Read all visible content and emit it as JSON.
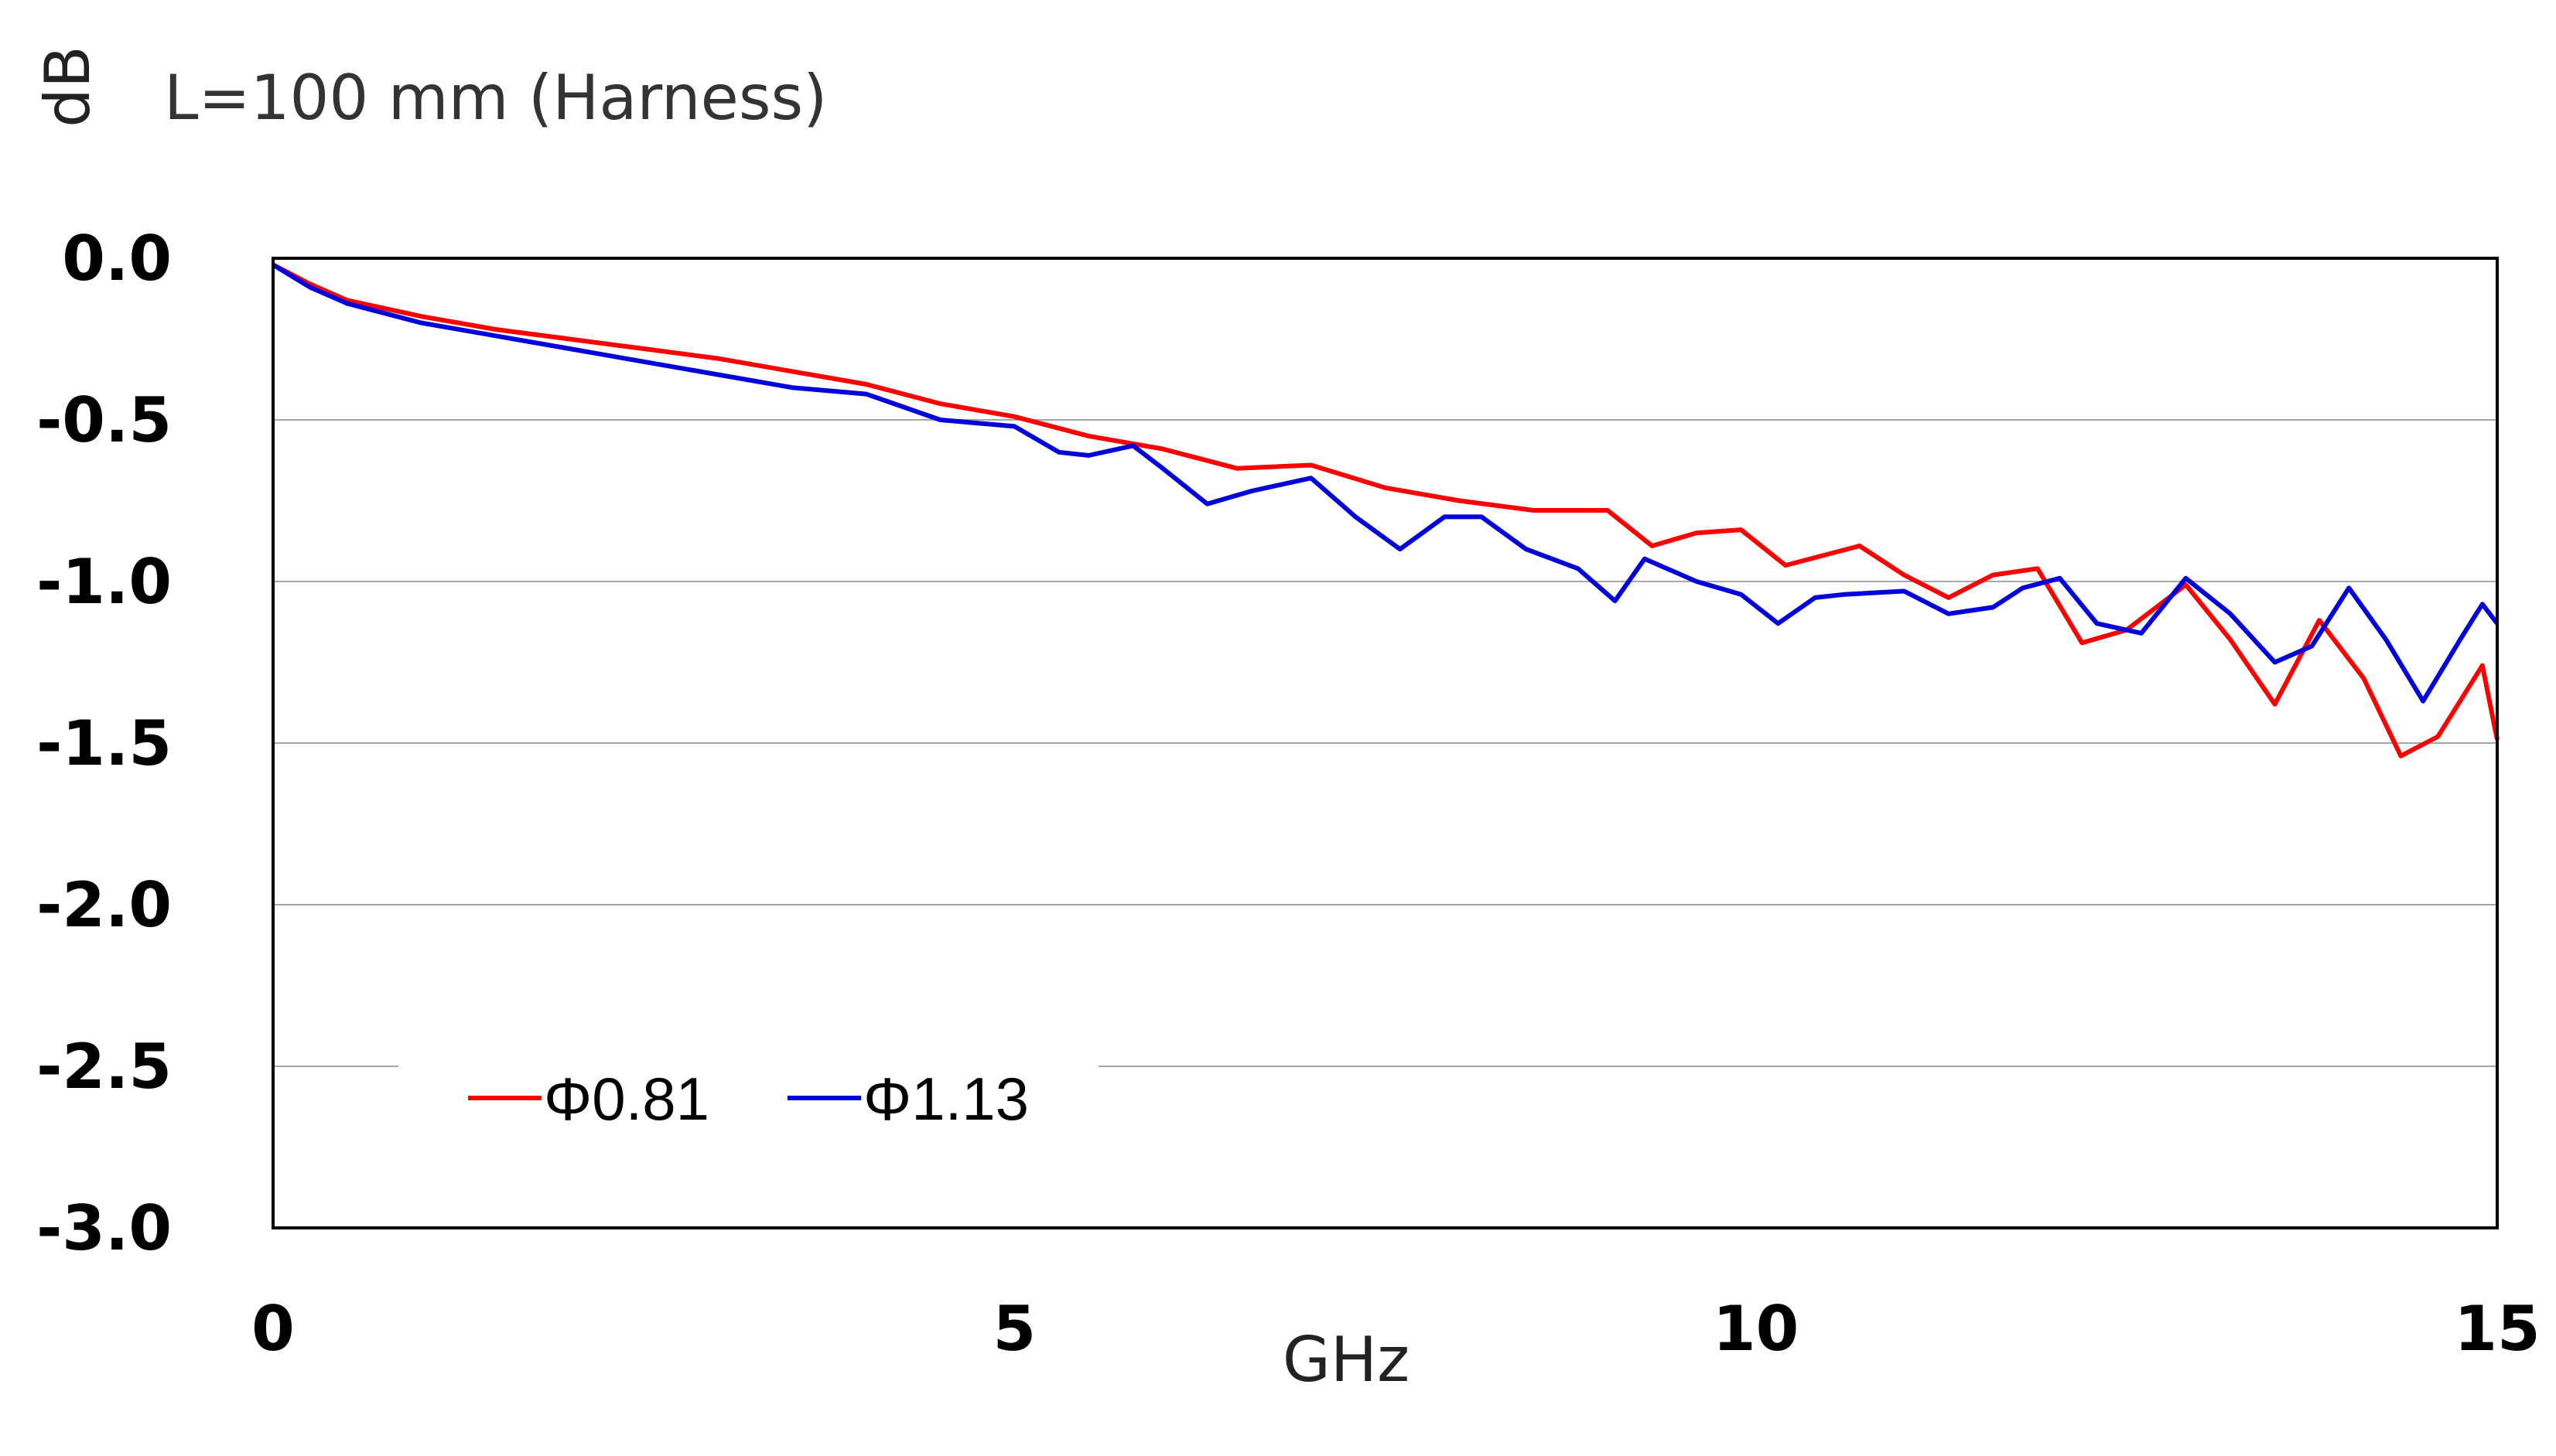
{
  "chart_data": {
    "type": "line",
    "title": "L=100 mm (Harness)",
    "ylabel": "dB",
    "xlabel": "GHz",
    "xlim": [
      0,
      15
    ],
    "ylim": [
      -3.0,
      0.0
    ],
    "x_ticks": [
      "0",
      "5",
      "10",
      "15"
    ],
    "y_ticks": [
      "0.0",
      "-0.5",
      "-1.0",
      "-1.5",
      "-2.0",
      "-2.5",
      "-3.0"
    ],
    "grid": "horizontal",
    "legend_position": "bottom-left",
    "colors": {
      "series1": "#ff0000",
      "series2": "#0000dd"
    },
    "series": [
      {
        "name": "Φ0.81",
        "x": [
          0,
          0.25,
          0.5,
          1,
          1.5,
          2,
          2.5,
          3,
          3.5,
          4,
          4.5,
          5,
          5.5,
          6,
          6.5,
          7,
          7.5,
          8,
          8.5,
          9,
          9.3,
          9.6,
          9.9,
          10.2,
          10.7,
          11,
          11.3,
          11.6,
          11.9,
          12.2,
          12.5,
          12.9,
          13.2,
          13.5,
          13.8,
          14.1,
          14.35,
          14.6,
          14.9,
          15
        ],
        "y": [
          -0.02,
          -0.08,
          -0.13,
          -0.18,
          -0.22,
          -0.25,
          -0.28,
          -0.31,
          -0.35,
          -0.39,
          -0.45,
          -0.49,
          -0.55,
          -0.59,
          -0.65,
          -0.64,
          -0.71,
          -0.75,
          -0.78,
          -0.78,
          -0.89,
          -0.85,
          -0.84,
          -0.95,
          -0.89,
          -0.98,
          -1.05,
          -0.98,
          -0.96,
          -1.19,
          -1.15,
          -1.01,
          -1.18,
          -1.38,
          -1.12,
          -1.3,
          -1.54,
          -1.48,
          -1.26,
          -1.49
        ]
      },
      {
        "name": "Φ1.13",
        "x": [
          0,
          0.25,
          0.5,
          1,
          1.5,
          2,
          2.5,
          3,
          3.5,
          4,
          4.5,
          5,
          5.3,
          5.5,
          5.8,
          6,
          6.3,
          6.6,
          7,
          7.3,
          7.6,
          7.9,
          8.15,
          8.45,
          8.8,
          9.05,
          9.25,
          9.6,
          9.9,
          10.15,
          10.4,
          10.6,
          11,
          11.3,
          11.6,
          11.8,
          12.05,
          12.3,
          12.6,
          12.9,
          13.2,
          13.5,
          13.75,
          14.0,
          14.25,
          14.5,
          14.75,
          14.9,
          15
        ],
        "y": [
          -0.02,
          -0.09,
          -0.14,
          -0.2,
          -0.24,
          -0.28,
          -0.32,
          -0.36,
          -0.4,
          -0.42,
          -0.5,
          -0.52,
          -0.6,
          -0.61,
          -0.58,
          -0.65,
          -0.76,
          -0.72,
          -0.68,
          -0.8,
          -0.9,
          -0.8,
          -0.8,
          -0.9,
          -0.96,
          -1.06,
          -0.93,
          -1.0,
          -1.04,
          -1.13,
          -1.05,
          -1.04,
          -1.03,
          -1.1,
          -1.08,
          -1.02,
          -0.99,
          -1.13,
          -1.16,
          -0.99,
          -1.1,
          -1.25,
          -1.2,
          -1.02,
          -1.18,
          -1.37,
          -1.18,
          -1.07,
          -1.13
        ]
      }
    ]
  }
}
